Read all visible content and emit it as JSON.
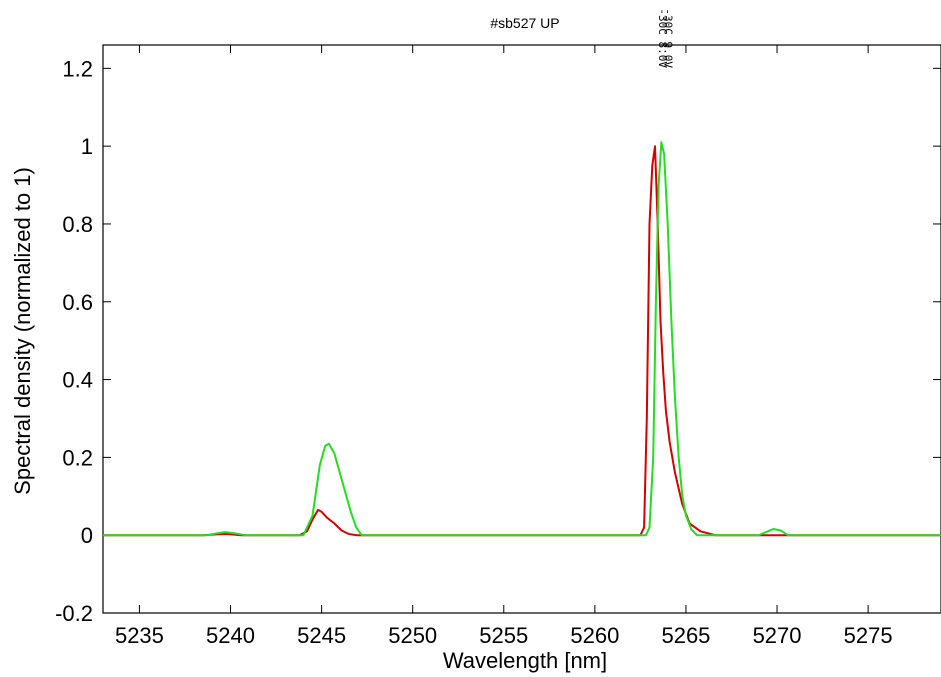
{
  "chart_data": {
    "type": "line",
    "title": "#sb527 UP",
    "xlabel": "Wavelength [nm]",
    "ylabel": "Spectral density (normalized to 1)",
    "xlim": [
      5233,
      5279
    ],
    "ylim": [
      -0.2,
      1.26
    ],
    "xticks": [
      5235,
      5240,
      5245,
      5250,
      5255,
      5260,
      5265,
      5270,
      5275
    ],
    "yticks": [
      -0.2,
      0,
      0.2,
      0.4,
      0.6,
      0.8,
      1,
      1.2
    ],
    "ytick_labels": [
      "-0.2",
      "0",
      "0.2",
      "0.4",
      "0.6",
      "0.8",
      "1",
      "1.2"
    ],
    "grid": false,
    "peak_labels": [
      {
        "text": "-30C 8.0V",
        "x": 5263.3,
        "color": "#000000"
      },
      {
        "text": "-30C 9.0V",
        "x": 5263.6,
        "color": "#000000"
      }
    ],
    "series": [
      {
        "color": "#d40000",
        "x": [
          5233,
          5238.5,
          5239.2,
          5239.8,
          5240.6,
          5243.8,
          5244.2,
          5244.5,
          5244.8,
          5245.0,
          5245.3,
          5245.7,
          5246.1,
          5246.5,
          5246.9,
          5262.5,
          5262.7,
          5262.85,
          5263.0,
          5263.15,
          5263.3,
          5263.45,
          5263.6,
          5263.75,
          5263.9,
          5264.1,
          5264.4,
          5264.8,
          5265.2,
          5265.8,
          5266.6,
          5279
        ],
        "y": [
          0,
          0,
          0.002,
          0.003,
          0,
          0,
          0.01,
          0.04,
          0.065,
          0.06,
          0.045,
          0.03,
          0.012,
          0.003,
          0,
          0,
          0.02,
          0.3,
          0.8,
          0.95,
          1.0,
          0.8,
          0.55,
          0.42,
          0.32,
          0.24,
          0.16,
          0.08,
          0.03,
          0.01,
          0,
          0
        ]
      },
      {
        "color": "#22dd22",
        "x": [
          5233,
          5238.7,
          5239.3,
          5239.7,
          5240.2,
          5240.8,
          5244.0,
          5244.5,
          5244.9,
          5245.2,
          5245.4,
          5245.7,
          5246.0,
          5246.3,
          5246.6,
          5246.9,
          5247.2,
          5262.8,
          5263.0,
          5263.2,
          5263.35,
          5263.5,
          5263.65,
          5263.8,
          5264.0,
          5264.2,
          5264.4,
          5264.6,
          5264.8,
          5265.0,
          5265.3,
          5265.6,
          5269.0,
          5269.5,
          5269.8,
          5270.2,
          5270.6,
          5279
        ],
        "y": [
          0,
          0,
          0.005,
          0.008,
          0.005,
          0,
          0,
          0.05,
          0.18,
          0.23,
          0.235,
          0.21,
          0.16,
          0.11,
          0.06,
          0.02,
          0,
          0,
          0.02,
          0.2,
          0.6,
          0.9,
          1.01,
          0.98,
          0.8,
          0.55,
          0.35,
          0.2,
          0.1,
          0.05,
          0.015,
          0,
          0,
          0.01,
          0.016,
          0.012,
          0,
          0
        ]
      }
    ]
  }
}
